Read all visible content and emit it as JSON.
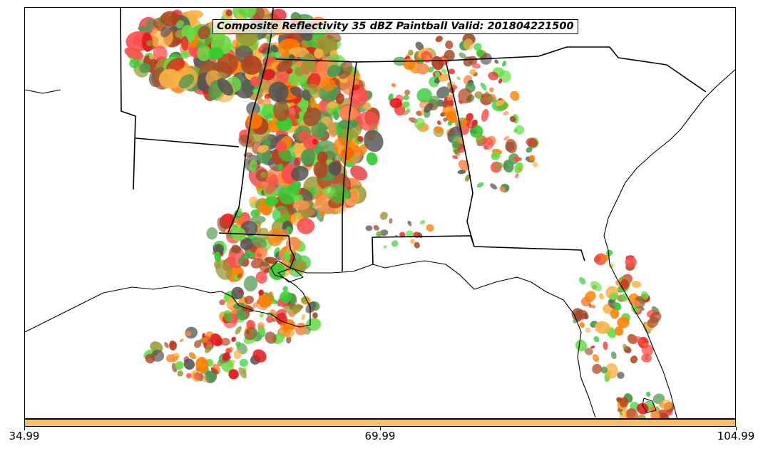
{
  "title": "Composite Reflectivity 35 dBZ Paintball Valid: 201804221500",
  "colorbar": {
    "color": "#fdbf60",
    "ticks": [
      "34.99",
      "69.99",
      "104.99"
    ]
  },
  "paintball_colors": [
    "#e31a1c",
    "#ff7f00",
    "#33cc33",
    "#999933",
    "#fb8b4a",
    "#b2421f",
    "#555555",
    "#fdb347",
    "#4e9a4e",
    "#ff4c4c",
    "#a0522d",
    "#66dd44"
  ],
  "map": {
    "region": "Southeastern United States",
    "boundaries": [
      "coastlines",
      "state borders"
    ]
  }
}
